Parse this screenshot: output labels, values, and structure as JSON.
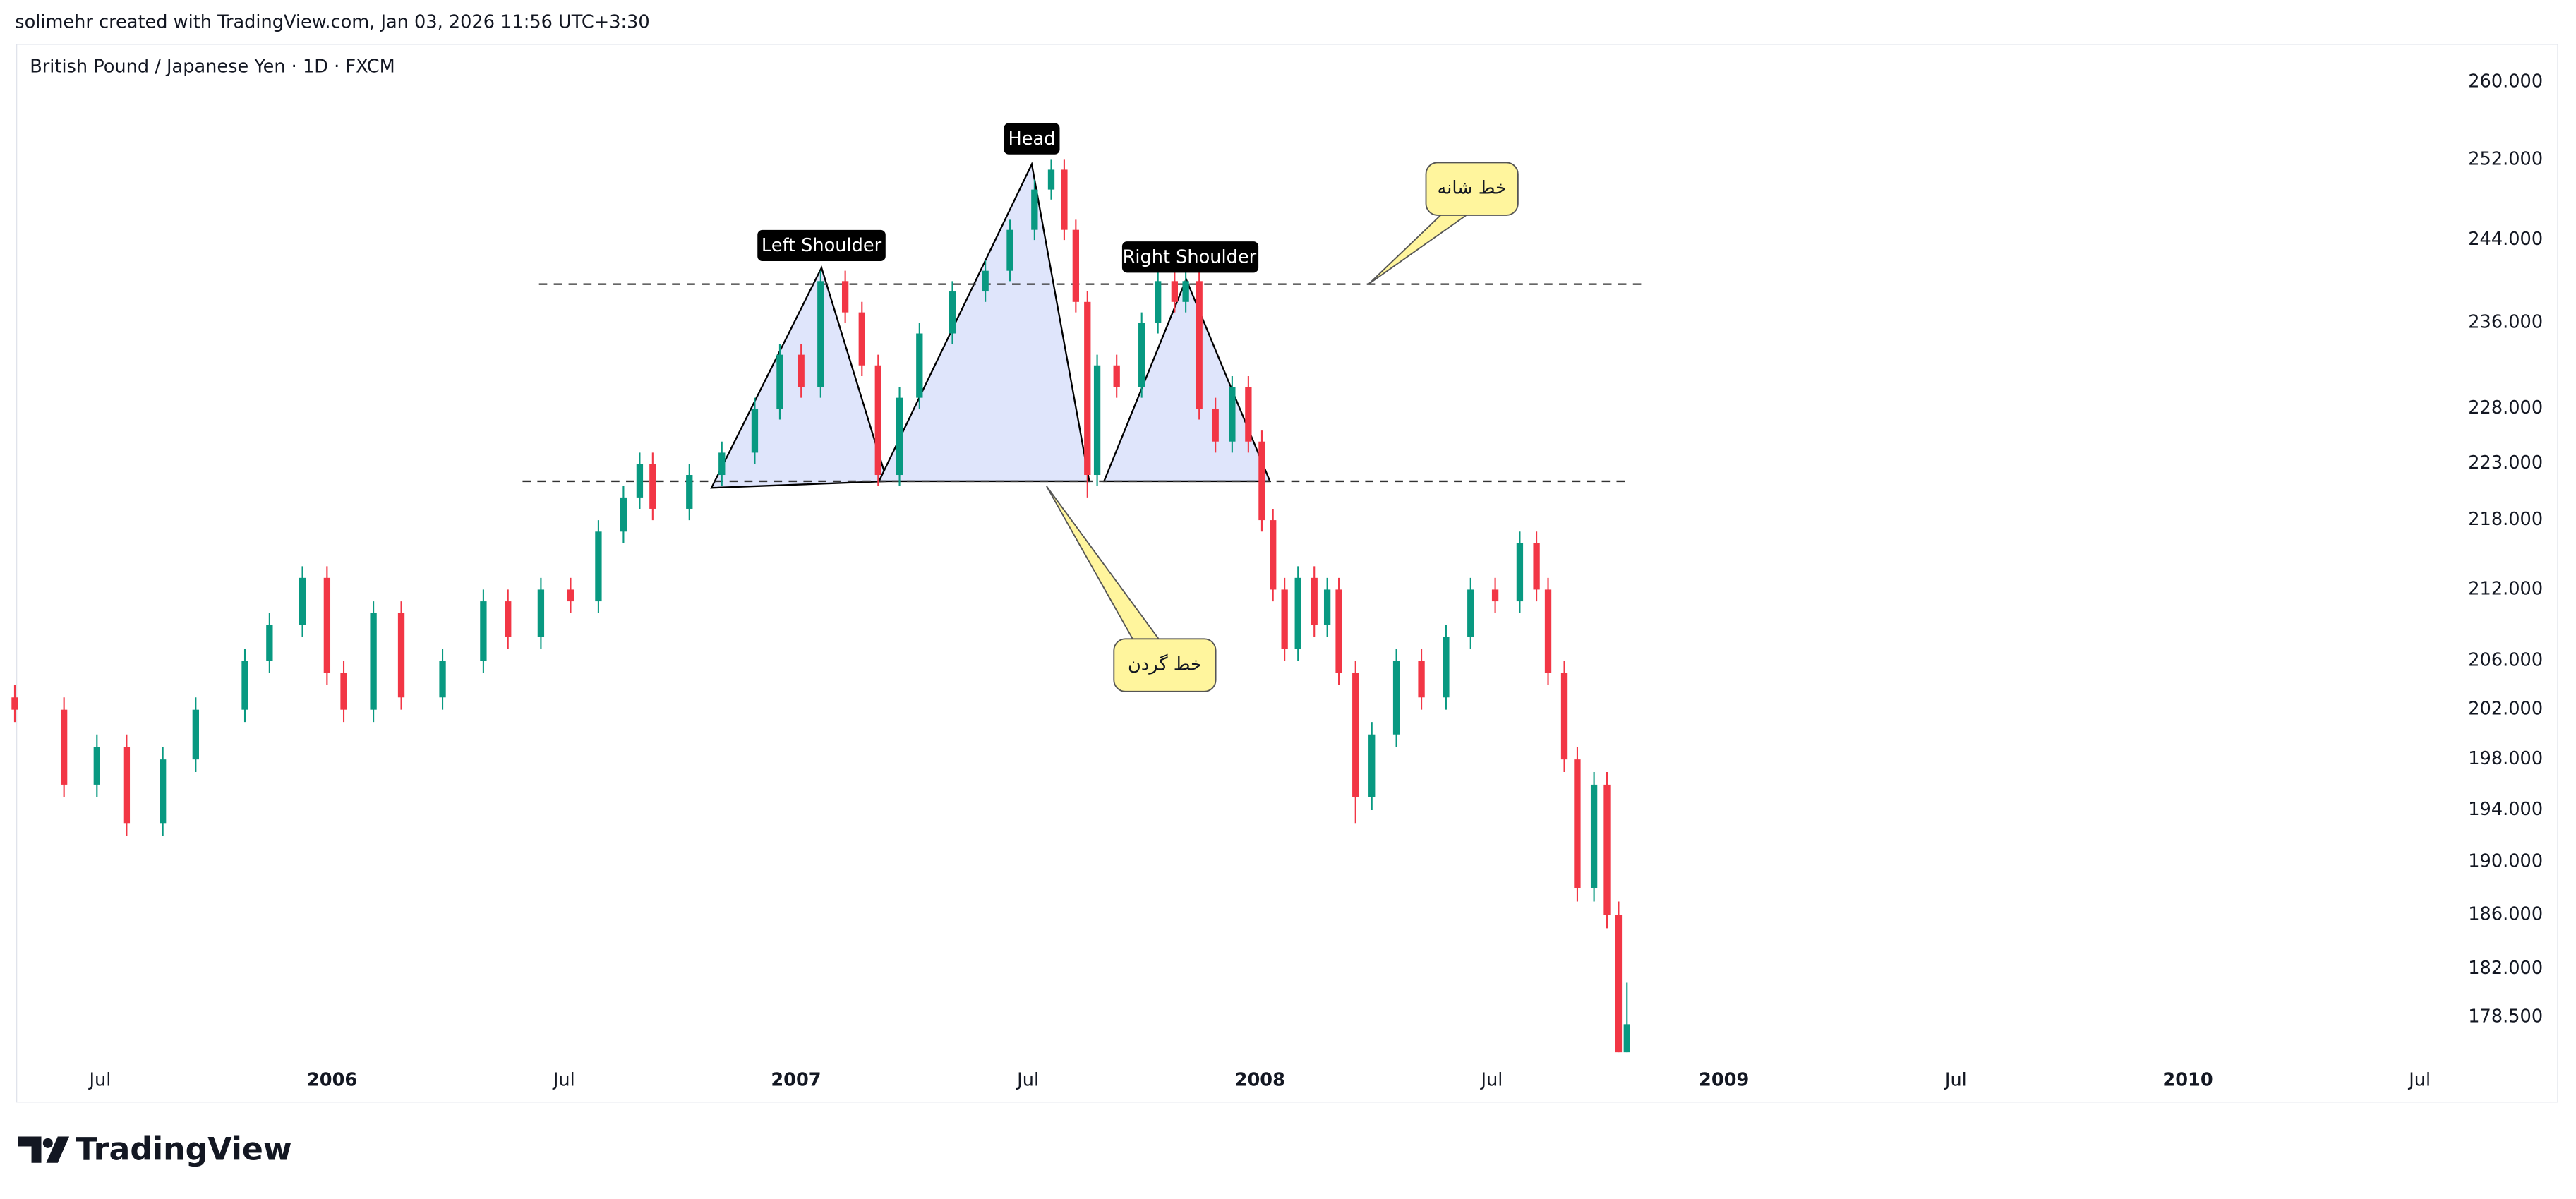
{
  "header": "solimehr created with TradingView.com, Jan 03, 2026 11:56 UTC+3:30",
  "chart_data": {
    "type": "candlestick",
    "title": "British Pound / Japanese Yen · 1D · FXCM",
    "x": [
      2005.316,
      2005.422,
      2005.493,
      2005.557,
      2005.635,
      2005.706,
      2005.812,
      2005.865,
      2005.936,
      2005.989,
      2006.025,
      2006.089,
      2006.149,
      2006.238,
      2006.326,
      2006.379,
      2006.45,
      2006.514,
      2006.574,
      2006.628,
      2006.663,
      2006.691,
      2006.77,
      2006.84,
      2006.911,
      2006.965,
      2007.011,
      2007.053,
      2007.106,
      2007.142,
      2007.177,
      2007.223,
      2007.266,
      2007.337,
      2007.408,
      2007.461,
      2007.514,
      2007.55,
      2007.578,
      2007.603,
      2007.628,
      2007.649,
      2007.691,
      2007.745,
      2007.78,
      2007.816,
      2007.84,
      2007.869,
      2007.904,
      2007.94,
      2007.975,
      2008.004,
      2008.028,
      2008.053,
      2008.082,
      2008.117,
      2008.145,
      2008.17,
      2008.206,
      2008.241,
      2008.294,
      2008.348,
      2008.401,
      2008.454,
      2008.507,
      2008.56,
      2008.596,
      2008.621,
      2008.656,
      2008.684,
      2008.72,
      2008.748,
      2008.773,
      2008.791
    ],
    "open": [
      203,
      202,
      196,
      199,
      193,
      198,
      202,
      206,
      209,
      213,
      205,
      202,
      210,
      203,
      206,
      211,
      208,
      212,
      211,
      217,
      220,
      223,
      219,
      222,
      224,
      228,
      233,
      230,
      240,
      237,
      232,
      222,
      229,
      235,
      239,
      241,
      245,
      249,
      251,
      245,
      238,
      222,
      232,
      230,
      236,
      240,
      238,
      240,
      228,
      225,
      230,
      225,
      218,
      212,
      207,
      213,
      209,
      212,
      205,
      195,
      200,
      206,
      203,
      208,
      212,
      211,
      216,
      212,
      205,
      198,
      188,
      196,
      186,
      176
    ],
    "high": [
      204,
      203,
      200,
      200,
      199,
      203,
      207,
      210,
      214,
      214,
      206,
      211,
      211,
      207,
      212,
      212,
      213,
      213,
      218,
      221,
      224,
      224,
      223,
      225,
      229,
      234,
      234,
      241,
      241,
      238,
      233,
      230,
      236,
      240,
      242,
      246,
      250,
      252,
      252,
      246,
      239,
      233,
      233,
      237,
      241,
      241,
      241,
      241,
      229,
      231,
      231,
      226,
      219,
      213,
      214,
      214,
      213,
      213,
      206,
      201,
      207,
      207,
      209,
      213,
      213,
      217,
      217,
      213,
      206,
      199,
      197,
      197,
      187,
      181
    ],
    "low": [
      201,
      195,
      195,
      192,
      192,
      197,
      201,
      205,
      208,
      204,
      201,
      201,
      202,
      202,
      205,
      207,
      207,
      210,
      210,
      216,
      219,
      218,
      218,
      221,
      223,
      227,
      229,
      229,
      236,
      231,
      221,
      221,
      228,
      234,
      238,
      240,
      244,
      248,
      244,
      237,
      220,
      221,
      229,
      229,
      235,
      237,
      237,
      227,
      224,
      224,
      224,
      217,
      211,
      206,
      206,
      208,
      208,
      204,
      193,
      194,
      199,
      202,
      202,
      207,
      210,
      210,
      211,
      204,
      197,
      187,
      187,
      185,
      176,
      176
    ],
    "close": [
      202,
      196,
      199,
      193,
      198,
      202,
      206,
      209,
      213,
      205,
      202,
      210,
      203,
      206,
      211,
      208,
      212,
      211,
      217,
      220,
      223,
      219,
      222,
      224,
      228,
      233,
      230,
      240,
      237,
      232,
      222,
      229,
      235,
      239,
      241,
      245,
      249,
      251,
      245,
      238,
      222,
      232,
      230,
      236,
      240,
      238,
      240,
      228,
      225,
      230,
      225,
      218,
      212,
      207,
      213,
      209,
      212,
      205,
      195,
      200,
      206,
      203,
      208,
      212,
      211,
      216,
      212,
      205,
      198,
      188,
      196,
      186,
      176,
      178
    ],
    "up_color": "#089981",
    "down_color": "#f23645",
    "log_scale": true,
    "xlim": [
      2005.32,
      2010.56
    ],
    "xticks": [
      {
        "value": 2005.5,
        "label": "Jul"
      },
      2006,
      {
        "value": 2006.5,
        "label": "Jul"
      },
      2007,
      {
        "value": 2007.5,
        "label": "Jul"
      },
      2008,
      {
        "value": 2008.5,
        "label": "Jul"
      },
      2009,
      {
        "value": 2009.5,
        "label": "Jul"
      },
      2010,
      {
        "value": 2010.5,
        "label": "Jul"
      }
    ],
    "ylim": [
      175.5,
      263.8
    ],
    "yticks": [
      {
        "value": 260,
        "label": "260.000"
      },
      {
        "value": 252,
        "label": "252.000"
      },
      {
        "value": 244,
        "label": "244.000"
      },
      {
        "value": 236,
        "label": "236.000"
      },
      {
        "value": 228,
        "label": "228.000"
      },
      {
        "value": 223,
        "label": "223.000"
      },
      {
        "value": 218,
        "label": "218.000"
      },
      {
        "value": 212,
        "label": "212.000"
      },
      {
        "value": 206,
        "label": "206.000"
      },
      {
        "value": 202,
        "label": "202.000"
      },
      {
        "value": 198,
        "label": "198.000"
      },
      {
        "value": 194,
        "label": "194.000"
      },
      {
        "value": 190,
        "label": "190.000"
      },
      {
        "value": 186,
        "label": "186.000"
      },
      {
        "value": 182,
        "label": "182.000"
      },
      {
        "value": 178.5,
        "label": "178.500"
      }
    ]
  },
  "annotations": {
    "left_shoulder": "Left Shoulder",
    "head": "Head",
    "right_shoulder": "Right Shoulder",
    "shoulder_line": "خط شانه",
    "neckline": "خط گردن"
  },
  "footer": {
    "logo": "TradingView"
  }
}
